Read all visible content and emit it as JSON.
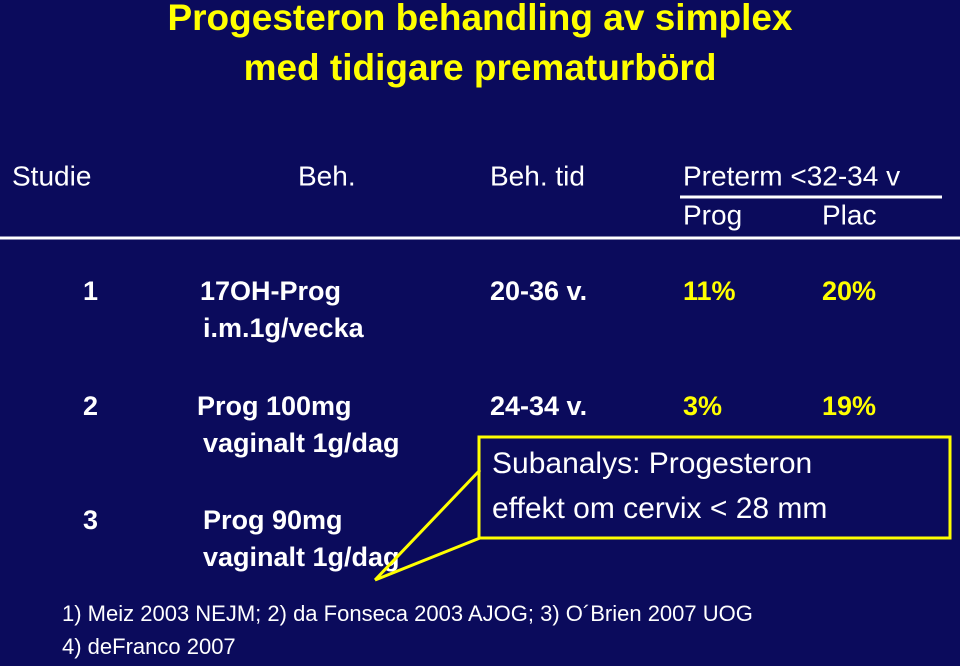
{
  "title": [
    "Progesteron behandling av simplex",
    "med tidigare prematurbörd"
  ],
  "table": {
    "header": [
      "Studie",
      "Beh.",
      "Beh. tid",
      "Preterm <32-34 v"
    ],
    "subheader": [
      "Prog",
      "Plac"
    ],
    "rows": [
      {
        "study": "1",
        "treatment": [
          "17OH-Prog",
          "i.m.1g/vecka"
        ],
        "duration": "20-36 v.",
        "prog": "11%",
        "plac": "20%"
      },
      {
        "study": "2",
        "treatment": [
          "Prog 100mg",
          "vaginalt 1g/dag"
        ],
        "duration": "24-34 v.",
        "prog": "3%",
        "plac": "19%"
      },
      {
        "study": "3",
        "treatment": [
          "Prog 90mg",
          "vaginalt 1g/dag"
        ]
      }
    ]
  },
  "callout": [
    "Subanalys: Progesteron",
    "effekt om cervix < 28 mm"
  ],
  "footnotes": [
    "1)  Meiz 2003 NEJM; 2) da Fonseca 2003 AJOG; 3) O´Brien 2007 UOG",
    "4) deFranco 2007"
  ]
}
